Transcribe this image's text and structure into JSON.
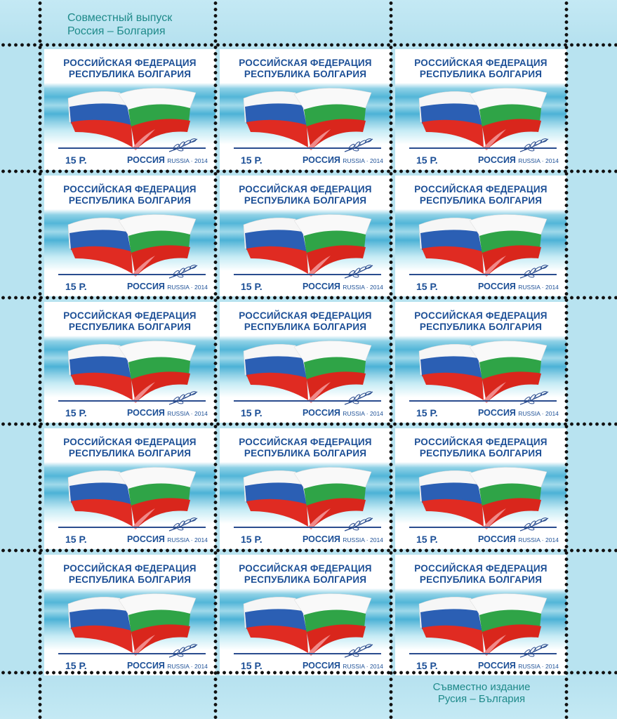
{
  "sheet": {
    "joint_issue_ru": "Совместный выпуск\nРоссия – Болгария",
    "joint_issue_bg": "Съвместно издание\nРусия – България"
  },
  "stamp": {
    "title_line1": "РОССИЙСКАЯ ФЕДЕРАЦИЯ",
    "title_line2": "РЕСПУБЛИКА БОЛГАРИЯ",
    "value": "15 Р.",
    "country": "РОССИЯ",
    "country_latin": "RUSSIA · 2014",
    "count": 15,
    "colors": {
      "russia_white": "#f6f6f6",
      "russia_blue": "#2b5fb4",
      "russia_red": "#e02b22",
      "bulgaria_white": "#f9f9f9",
      "bulgaria_green": "#2fa447",
      "bulgaria_red": "#d9261c",
      "text_blue": "#1c4f96",
      "sea": "#53b6d8"
    },
    "icons": [
      "flag-russia-icon",
      "flag-bulgaria-icon",
      "olive-branch-icon"
    ]
  }
}
